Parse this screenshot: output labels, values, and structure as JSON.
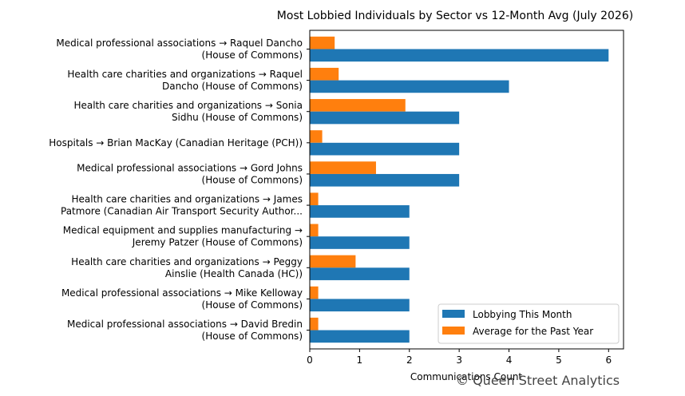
{
  "chart_data": {
    "type": "bar",
    "orientation": "horizontal",
    "title": "Most Lobbied Individuals by Sector vs 12-Month Avg (July 2026)",
    "xlabel": "Communications Count",
    "ylabel": "",
    "xlim": [
      0,
      6.3
    ],
    "x_ticks": [
      "0",
      "1",
      "2",
      "3",
      "4",
      "5",
      "6"
    ],
    "grid": false,
    "legend_position": "lower-right",
    "categories": [
      [
        "Medical professional associations → Raquel Dancho",
        "(House of Commons)"
      ],
      [
        "Health care charities and organizations → Raquel",
        "Dancho (House of Commons)"
      ],
      [
        "Health care charities and organizations → Sonia",
        "Sidhu (House of Commons)"
      ],
      [
        "Hospitals → Brian MacKay (Canadian Heritage (PCH))"
      ],
      [
        "Medical professional associations → Gord Johns",
        "(House of Commons)"
      ],
      [
        "Health care charities and organizations → James",
        "Patmore (Canadian Air Transport Security Author..."
      ],
      [
        "Medical equipment and supplies manufacturing →",
        "Jeremy Patzer (House of Commons)"
      ],
      [
        "Health care charities and organizations → Peggy",
        "Ainslie (Health Canada (HC))"
      ],
      [
        "Medical professional associations → Mike Kelloway",
        "(House of Commons)"
      ],
      [
        "Medical professional associations → David Bredin",
        "(House of Commons)"
      ]
    ],
    "series": [
      {
        "name": "Lobbying This Month",
        "color": "#1f77b4",
        "values": [
          6,
          4,
          3,
          3,
          3,
          2,
          2,
          2,
          2,
          2
        ]
      },
      {
        "name": "Average for the Past Year",
        "color": "#ff7f0e",
        "values": [
          0.5,
          0.58,
          1.92,
          0.25,
          1.33,
          0.17,
          0.17,
          0.92,
          0.17,
          0.17
        ]
      }
    ]
  },
  "watermark": "© Queen Street Analytics"
}
